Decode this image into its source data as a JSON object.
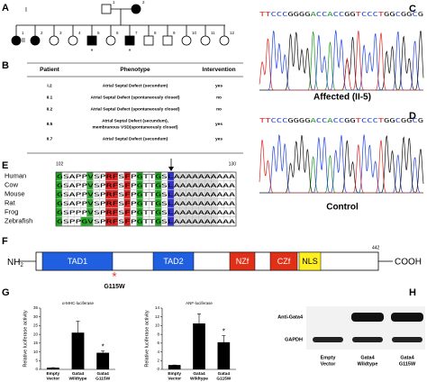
{
  "panels": {
    "a": "A",
    "b": "B",
    "c": "C",
    "d": "D",
    "e": "E",
    "f": "F",
    "g": "G",
    "h": "H"
  },
  "pedigree": {
    "generations": [
      "I",
      "II"
    ],
    "gen1": [
      "1",
      "2"
    ],
    "gen2": [
      "1",
      "2",
      "3",
      "4",
      "5",
      "6",
      "7",
      "8",
      "9",
      "10",
      "11",
      "12"
    ],
    "probands": [
      "*",
      "*"
    ]
  },
  "table": {
    "headers": [
      "Patient",
      "Phenotype",
      "Intervention"
    ],
    "rows": [
      [
        "I.2",
        [
          "Atrial Septal Defect (secundum)"
        ],
        "yes"
      ],
      [
        "II.1",
        [
          "Atrial Septal Defect (spontaneously closed)"
        ],
        "no"
      ],
      [
        "II.2",
        [
          "Atrial Septal Defect (spontaneously closed)"
        ],
        "no"
      ],
      [
        "II.5",
        [
          "Atrial Septal Defect (secundum),",
          "membranous VSD(spontaneously closed)"
        ],
        "yes"
      ],
      [
        "II.7",
        [
          "Atrial Septal Defect (secundum)"
        ],
        "yes"
      ]
    ]
  },
  "chromatograms": [
    {
      "sequence": "TTCCCGGGGACCACCGGTCCCTGGCGGCG",
      "label": "Affected (II-5)"
    },
    {
      "sequence": "TTCCCGGGGACCACCGGTCCCTGGCGGCG",
      "label": "Control"
    }
  ],
  "alignment": {
    "start": "102",
    "end": "130",
    "species": [
      "Human",
      "Cow",
      "Mouse",
      "Rat",
      "Frog",
      "Zebrafish"
    ],
    "sequences": [
      "GSAPPVSPRFSFPGTTGSLAAAAAAAAAA",
      "GSAPPVSPRFSFPGTTGSLAAAAAAAAAA",
      "GSAPPVSPRFSFPGTTGSLAAAAAAAAAA",
      "GSAPPVSPRFSFPGTTGSLAAAAAAAAAA",
      "GSPPPVSPRFSFPGTTGSLAAAAAAAAAA",
      "GSPPGVSPRFSFPGTTGSLAAAAAAAAAA"
    ]
  },
  "protein": {
    "n_term": "NH",
    "n_sub": "2",
    "c_term": "COOH",
    "length": "442",
    "domains": [
      "TAD1",
      "TAD2",
      "NZf",
      "CZf",
      "NLS"
    ],
    "mutation_mark": "*",
    "mutation": "G115W"
  },
  "chart_data": [
    {
      "type": "bar",
      "title": "α-MHC-luciferase",
      "ylabel": "Relative luciferase activity",
      "categories": [
        "Empty Vector",
        "Gata4 Wildtype",
        "Gata4 G115W"
      ],
      "values": [
        1,
        21,
        9.5
      ],
      "errors": [
        0,
        6.5,
        1
      ],
      "color": "#000000",
      "ylim": [
        0,
        35
      ],
      "yticks": [
        0,
        5,
        10,
        15,
        20,
        25,
        30,
        35
      ],
      "annotations": [
        {
          "index": 2,
          "text": "*"
        }
      ]
    },
    {
      "type": "bar",
      "title": "ANF-luciferase",
      "ylabel": "Relative luciferase activity",
      "categories": [
        "Empty Vector",
        "Gata4 Wildtype",
        "Gata4 G115W"
      ],
      "values": [
        1,
        10.5,
        6.2
      ],
      "errors": [
        0,
        2.2,
        1.5
      ],
      "color": "#000000",
      "ylim": [
        0,
        14
      ],
      "yticks": [
        0,
        2,
        4,
        6,
        8,
        10,
        12,
        14
      ],
      "annotations": [
        {
          "index": 2,
          "text": "*"
        }
      ]
    }
  ],
  "blot": {
    "rows": [
      "Anti-Gata4",
      "GAPDH"
    ],
    "lanes": [
      [
        "Empty",
        "Vector"
      ],
      [
        "Gata4",
        "Wildtype"
      ],
      [
        "Gata4",
        "G115W"
      ]
    ]
  }
}
